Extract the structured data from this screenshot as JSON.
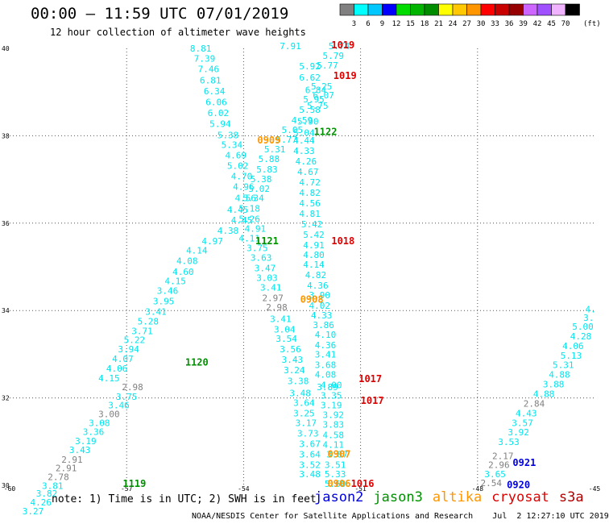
{
  "header": {
    "title": "00:00 – 11:59 UTC 07/01/2019",
    "subtitle": "12 hour collection of altimeter wave heights"
  },
  "color_scale": {
    "colors": [
      "#808080",
      "#00ffff",
      "#00c8ff",
      "#0000ff",
      "#00dc00",
      "#00b400",
      "#008c00",
      "#ffff00",
      "#ffc800",
      "#ff9600",
      "#ff0000",
      "#c80000",
      "#960000",
      "#cc66ff",
      "#a050ff",
      "#f0b4ff",
      "#000000"
    ],
    "labels": [
      "3",
      "6",
      "9",
      "12",
      "15",
      "18",
      "21",
      "24",
      "27",
      "30",
      "33",
      "36",
      "39",
      "42",
      "45",
      "70"
    ],
    "unit": "(ft)"
  },
  "map": {
    "x_ticks": [
      "-60",
      "-57",
      "-54",
      "-51",
      "-48",
      "-45"
    ],
    "y_ticks": [
      "40",
      "38",
      "36",
      "34",
      "32",
      "30"
    ],
    "xlim": [
      -60,
      -45
    ],
    "ylim": [
      30,
      40
    ]
  },
  "chart_data": {
    "type": "scatter",
    "points": [
      {
        "lon": -55.1,
        "lat": 39.93,
        "v": "8.81",
        "c": "#00e5ee"
      },
      {
        "lon": -55.0,
        "lat": 39.7,
        "v": "7.39",
        "c": "#00e5ee"
      },
      {
        "lon": -54.9,
        "lat": 39.46,
        "v": "7.46",
        "c": "#00e5ee"
      },
      {
        "lon": -54.85,
        "lat": 39.2,
        "v": "6.81",
        "c": "#00e5ee"
      },
      {
        "lon": -54.75,
        "lat": 38.95,
        "v": "6.34",
        "c": "#00e5ee"
      },
      {
        "lon": -54.7,
        "lat": 38.7,
        "v": "6.06",
        "c": "#00e5ee"
      },
      {
        "lon": -54.65,
        "lat": 38.45,
        "v": "6.02",
        "c": "#00e5ee"
      },
      {
        "lon": -54.6,
        "lat": 38.2,
        "v": "5.94",
        "c": "#00e5ee"
      },
      {
        "lon": -54.4,
        "lat": 37.94,
        "v": "5.38",
        "c": "#00e5ee"
      },
      {
        "lon": -54.3,
        "lat": 37.72,
        "v": "5.34",
        "c": "#00e5ee"
      },
      {
        "lon": -54.2,
        "lat": 37.48,
        "v": "4.69",
        "c": "#00e5ee"
      },
      {
        "lon": -54.15,
        "lat": 37.24,
        "v": "5.02",
        "c": "#00e5ee"
      },
      {
        "lon": -54.05,
        "lat": 37.0,
        "v": "4.70",
        "c": "#00e5ee"
      },
      {
        "lon": -54.0,
        "lat": 36.76,
        "v": "4.96",
        "c": "#00e5ee"
      },
      {
        "lon": -53.95,
        "lat": 36.5,
        "v": "4.56",
        "c": "#00e5ee"
      },
      {
        "lon": -54.15,
        "lat": 36.24,
        "v": "4.45",
        "c": "#00e5ee"
      },
      {
        "lon": -54.05,
        "lat": 36.0,
        "v": "4.45",
        "c": "#00e5ee"
      },
      {
        "lon": -54.4,
        "lat": 35.76,
        "v": "4.38",
        "c": "#00e5ee"
      },
      {
        "lon": -54.8,
        "lat": 35.52,
        "v": "4.97",
        "c": "#00e5ee"
      },
      {
        "lon": -55.2,
        "lat": 35.3,
        "v": "4.14",
        "c": "#00e5ee"
      },
      {
        "lon": -55.45,
        "lat": 35.06,
        "v": "4.08",
        "c": "#00e5ee"
      },
      {
        "lon": -55.55,
        "lat": 34.82,
        "v": "4.60",
        "c": "#00e5ee"
      },
      {
        "lon": -55.75,
        "lat": 34.6,
        "v": "4.15",
        "c": "#00e5ee"
      },
      {
        "lon": -55.95,
        "lat": 34.38,
        "v": "3.46",
        "c": "#00e5ee"
      },
      {
        "lon": -56.05,
        "lat": 34.14,
        "v": "3.95",
        "c": "#00e5ee"
      },
      {
        "lon": -56.25,
        "lat": 33.9,
        "v": "3.41",
        "c": "#00e5ee"
      },
      {
        "lon": -56.45,
        "lat": 33.68,
        "v": "5.28",
        "c": "#00e5ee"
      },
      {
        "lon": -56.6,
        "lat": 33.46,
        "v": "3.71",
        "c": "#00e5ee"
      },
      {
        "lon": -56.8,
        "lat": 33.26,
        "v": "5.22",
        "c": "#00e5ee"
      },
      {
        "lon": -56.95,
        "lat": 33.04,
        "v": "3.94",
        "c": "#00e5ee"
      },
      {
        "lon": -57.1,
        "lat": 32.82,
        "v": "4.07",
        "c": "#00e5ee"
      },
      {
        "lon": -57.25,
        "lat": 32.6,
        "v": "4.06",
        "c": "#00e5ee"
      },
      {
        "lon": -57.45,
        "lat": 32.38,
        "v": "4.15",
        "c": "#00e5ee"
      },
      {
        "lon": -56.85,
        "lat": 32.18,
        "v": "2.98",
        "c": "#808080"
      },
      {
        "lon": -57.0,
        "lat": 31.96,
        "v": "3.75",
        "c": "#00e5ee"
      },
      {
        "lon": -57.2,
        "lat": 31.76,
        "v": "3.46",
        "c": "#00e5ee"
      },
      {
        "lon": -57.45,
        "lat": 31.56,
        "v": "3.00",
        "c": "#808080"
      },
      {
        "lon": -57.7,
        "lat": 31.36,
        "v": "3.08",
        "c": "#00e5ee"
      },
      {
        "lon": -57.85,
        "lat": 31.15,
        "v": "3.36",
        "c": "#00e5ee"
      },
      {
        "lon": -58.05,
        "lat": 30.94,
        "v": "3.19",
        "c": "#00e5ee"
      },
      {
        "lon": -58.2,
        "lat": 30.74,
        "v": "3.43",
        "c": "#00e5ee"
      },
      {
        "lon": -58.4,
        "lat": 30.52,
        "v": "2.91",
        "c": "#808080"
      },
      {
        "lon": -58.55,
        "lat": 30.32,
        "v": "2.91",
        "c": "#808080"
      },
      {
        "lon": -58.75,
        "lat": 30.12,
        "v": "2.78",
        "c": "#808080"
      },
      {
        "lon": -58.9,
        "lat": 29.92,
        "v": "3.81",
        "c": "#00e5ee"
      },
      {
        "lon": -59.05,
        "lat": 29.74,
        "v": "3.82",
        "c": "#00e5ee"
      },
      {
        "lon": -59.2,
        "lat": 29.54,
        "v": "4.26",
        "c": "#00e5ee"
      },
      {
        "lon": -59.4,
        "lat": 29.34,
        "v": "3.27",
        "c": "#00e5ee"
      },
      {
        "lon": -52.8,
        "lat": 39.98,
        "v": "7.91",
        "c": "#00e5ee"
      },
      {
        "lon": -51.55,
        "lat": 39.98,
        "v": "5.74",
        "c": "#00e5ee"
      },
      {
        "lon": -51.7,
        "lat": 39.76,
        "v": "5.79",
        "c": "#00e5ee"
      },
      {
        "lon": -51.85,
        "lat": 39.54,
        "v": "5.77",
        "c": "#00e5ee"
      },
      {
        "lon": -52.3,
        "lat": 39.52,
        "v": "5.92",
        "c": "#00e5ee"
      },
      {
        "lon": -52.3,
        "lat": 39.26,
        "v": "6.62",
        "c": "#00e5ee"
      },
      {
        "lon": -52.0,
        "lat": 39.06,
        "v": "5.25",
        "c": "#00e5ee"
      },
      {
        "lon": -52.15,
        "lat": 38.98,
        "v": "6.84",
        "c": "#00e5ee"
      },
      {
        "lon": -51.95,
        "lat": 38.86,
        "v": "6.07",
        "c": "#00e5ee"
      },
      {
        "lon": -52.2,
        "lat": 38.76,
        "v": "5.95",
        "c": "#00e5ee"
      },
      {
        "lon": -52.1,
        "lat": 38.62,
        "v": "5.75",
        "c": "#00e5ee"
      },
      {
        "lon": -52.3,
        "lat": 38.52,
        "v": "5.58",
        "c": "#00e5ee"
      },
      {
        "lon": -52.5,
        "lat": 38.28,
        "v": "4.59",
        "c": "#00e5ee"
      },
      {
        "lon": -52.35,
        "lat": 38.26,
        "v": "5.90",
        "c": "#00e5ee"
      },
      {
        "lon": -52.75,
        "lat": 38.06,
        "v": "5.05",
        "c": "#00e5ee"
      },
      {
        "lon": -52.45,
        "lat": 38.0,
        "v": "5.04",
        "c": "#00e5ee"
      },
      {
        "lon": -52.9,
        "lat": 37.84,
        "v": "5.77",
        "c": "#00e5ee"
      },
      {
        "lon": -52.45,
        "lat": 37.82,
        "v": "4.44",
        "c": "#00e5ee"
      },
      {
        "lon": -53.2,
        "lat": 37.62,
        "v": "5.31",
        "c": "#00e5ee"
      },
      {
        "lon": -52.45,
        "lat": 37.58,
        "v": "4.33",
        "c": "#00e5ee"
      },
      {
        "lon": -53.35,
        "lat": 37.4,
        "v": "5.88",
        "c": "#00e5ee"
      },
      {
        "lon": -52.4,
        "lat": 37.34,
        "v": "4.26",
        "c": "#00e5ee"
      },
      {
        "lon": -53.4,
        "lat": 37.16,
        "v": "5.83",
        "c": "#00e5ee"
      },
      {
        "lon": -52.35,
        "lat": 37.1,
        "v": "4.67",
        "c": "#00e5ee"
      },
      {
        "lon": -53.55,
        "lat": 36.94,
        "v": "5.38",
        "c": "#00e5ee"
      },
      {
        "lon": -53.6,
        "lat": 36.72,
        "v": "5.02",
        "c": "#00e5ee"
      },
      {
        "lon": -52.3,
        "lat": 36.86,
        "v": "4.72",
        "c": "#00e5ee"
      },
      {
        "lon": -53.75,
        "lat": 36.5,
        "v": "5.34",
        "c": "#00e5ee"
      },
      {
        "lon": -52.3,
        "lat": 36.62,
        "v": "4.82",
        "c": "#00e5ee"
      },
      {
        "lon": -53.85,
        "lat": 36.26,
        "v": "5.18",
        "c": "#00e5ee"
      },
      {
        "lon": -52.3,
        "lat": 36.38,
        "v": "4.56",
        "c": "#00e5ee"
      },
      {
        "lon": -53.85,
        "lat": 36.02,
        "v": "5.26",
        "c": "#00e5ee"
      },
      {
        "lon": -52.3,
        "lat": 36.14,
        "v": "4.81",
        "c": "#00e5ee"
      },
      {
        "lon": -53.7,
        "lat": 35.8,
        "v": "4.91",
        "c": "#00e5ee"
      },
      {
        "lon": -52.25,
        "lat": 35.9,
        "v": "5.42",
        "c": "#00e5ee"
      },
      {
        "lon": -53.85,
        "lat": 35.58,
        "v": "4.11",
        "c": "#00e5ee"
      },
      {
        "lon": -52.2,
        "lat": 35.66,
        "v": "5.42",
        "c": "#00e5ee"
      },
      {
        "lon": -53.65,
        "lat": 35.36,
        "v": "3.75",
        "c": "#00e5ee"
      },
      {
        "lon": -52.2,
        "lat": 35.42,
        "v": "4.91",
        "c": "#00e5ee"
      },
      {
        "lon": -53.55,
        "lat": 35.14,
        "v": "3.63",
        "c": "#00e5ee"
      },
      {
        "lon": -52.2,
        "lat": 35.2,
        "v": "4.80",
        "c": "#00e5ee"
      },
      {
        "lon": -53.45,
        "lat": 34.9,
        "v": "3.47",
        "c": "#00e5ee"
      },
      {
        "lon": -52.2,
        "lat": 34.98,
        "v": "4.14",
        "c": "#00e5ee"
      },
      {
        "lon": -53.4,
        "lat": 34.68,
        "v": "3.03",
        "c": "#00e5ee"
      },
      {
        "lon": -52.15,
        "lat": 34.74,
        "v": "4.82",
        "c": "#00e5ee"
      },
      {
        "lon": -53.3,
        "lat": 34.46,
        "v": "3.41",
        "c": "#00e5ee"
      },
      {
        "lon": -52.1,
        "lat": 34.5,
        "v": "4.36",
        "c": "#00e5ee"
      },
      {
        "lon": -53.25,
        "lat": 34.22,
        "v": "2.97",
        "c": "#808080"
      },
      {
        "lon": -52.05,
        "lat": 34.28,
        "v": "3.90",
        "c": "#00e5ee"
      },
      {
        "lon": -53.15,
        "lat": 34.0,
        "v": "2.98",
        "c": "#808080"
      },
      {
        "lon": -52.05,
        "lat": 34.04,
        "v": "4.02",
        "c": "#00e5ee"
      },
      {
        "lon": -52.0,
        "lat": 33.82,
        "v": "4.33",
        "c": "#00e5ee"
      },
      {
        "lon": -53.05,
        "lat": 33.74,
        "v": "3.41",
        "c": "#00e5ee"
      },
      {
        "lon": -51.95,
        "lat": 33.6,
        "v": "3.86",
        "c": "#00e5ee"
      },
      {
        "lon": -52.95,
        "lat": 33.5,
        "v": "3.04",
        "c": "#00e5ee"
      },
      {
        "lon": -51.9,
        "lat": 33.38,
        "v": "4.10",
        "c": "#00e5ee"
      },
      {
        "lon": -52.9,
        "lat": 33.28,
        "v": "3.54",
        "c": "#00e5ee"
      },
      {
        "lon": -51.9,
        "lat": 33.14,
        "v": "4.36",
        "c": "#00e5ee"
      },
      {
        "lon": -52.8,
        "lat": 33.04,
        "v": "3.56",
        "c": "#00e5ee"
      },
      {
        "lon": -51.9,
        "lat": 32.92,
        "v": "3.41",
        "c": "#00e5ee"
      },
      {
        "lon": -52.75,
        "lat": 32.8,
        "v": "3.43",
        "c": "#00e5ee"
      },
      {
        "lon": -51.9,
        "lat": 32.68,
        "v": "3.68",
        "c": "#00e5ee"
      },
      {
        "lon": -52.7,
        "lat": 32.56,
        "v": "3.24",
        "c": "#00e5ee"
      },
      {
        "lon": -51.9,
        "lat": 32.46,
        "v": "4.08",
        "c": "#00e5ee"
      },
      {
        "lon": -51.75,
        "lat": 32.22,
        "v": "4.00",
        "c": "#00e5ee"
      },
      {
        "lon": -51.85,
        "lat": 32.18,
        "v": "3.89",
        "c": "#00e5ee"
      },
      {
        "lon": -52.6,
        "lat": 32.32,
        "v": "3.38",
        "c": "#00e5ee"
      },
      {
        "lon": -51.75,
        "lat": 31.98,
        "v": "3.35",
        "c": "#00e5ee"
      },
      {
        "lon": -52.55,
        "lat": 32.04,
        "v": "3.48",
        "c": "#00e5ee"
      },
      {
        "lon": -51.75,
        "lat": 31.76,
        "v": "3.19",
        "c": "#00e5ee"
      },
      {
        "lon": -52.45,
        "lat": 31.82,
        "v": "3.64",
        "c": "#00e5ee"
      },
      {
        "lon": -51.7,
        "lat": 31.54,
        "v": "3.92",
        "c": "#00e5ee"
      },
      {
        "lon": -52.45,
        "lat": 31.58,
        "v": "3.25",
        "c": "#00e5ee"
      },
      {
        "lon": -51.7,
        "lat": 31.32,
        "v": "3.83",
        "c": "#00e5ee"
      },
      {
        "lon": -52.4,
        "lat": 31.36,
        "v": "3.17",
        "c": "#00e5ee"
      },
      {
        "lon": -51.7,
        "lat": 31.08,
        "v": "4.58",
        "c": "#00e5ee"
      },
      {
        "lon": -52.35,
        "lat": 31.12,
        "v": "3.73",
        "c": "#00e5ee"
      },
      {
        "lon": -51.7,
        "lat": 30.86,
        "v": "4.11",
        "c": "#00e5ee"
      },
      {
        "lon": -52.3,
        "lat": 30.88,
        "v": "3.67",
        "c": "#00e5ee"
      },
      {
        "lon": -51.6,
        "lat": 30.64,
        "v": "3.87",
        "c": "#00e5ee"
      },
      {
        "lon": -51.65,
        "lat": 30.4,
        "v": "3.51",
        "c": "#00e5ee"
      },
      {
        "lon": -52.3,
        "lat": 30.64,
        "v": "3.64",
        "c": "#00e5ee"
      },
      {
        "lon": -51.65,
        "lat": 30.18,
        "v": "5.33",
        "c": "#00e5ee"
      },
      {
        "lon": -52.3,
        "lat": 30.4,
        "v": "3.52",
        "c": "#00e5ee"
      },
      {
        "lon": -51.65,
        "lat": 29.96,
        "v": "5.60",
        "c": "#00e5ee"
      },
      {
        "lon": -52.3,
        "lat": 30.18,
        "v": "3.48",
        "c": "#00e5ee"
      },
      {
        "lon": -45.1,
        "lat": 33.96,
        "v": "4.",
        "c": "#00e5ee"
      },
      {
        "lon": -45.15,
        "lat": 33.76,
        "v": "3.",
        "c": "#00e5ee"
      },
      {
        "lon": -45.3,
        "lat": 33.56,
        "v": "5.00",
        "c": "#00e5ee"
      },
      {
        "lon": -45.35,
        "lat": 33.34,
        "v": "4.28",
        "c": "#00e5ee"
      },
      {
        "lon": -45.55,
        "lat": 33.12,
        "v": "4.06",
        "c": "#00e5ee"
      },
      {
        "lon": -45.6,
        "lat": 32.9,
        "v": "5.13",
        "c": "#00e5ee"
      },
      {
        "lon": -45.8,
        "lat": 32.68,
        "v": "5.31",
        "c": "#00e5ee"
      },
      {
        "lon": -45.9,
        "lat": 32.46,
        "v": "4.88",
        "c": "#00e5ee"
      },
      {
        "lon": -46.05,
        "lat": 32.24,
        "v": "3.88",
        "c": "#00e5ee"
      },
      {
        "lon": -46.3,
        "lat": 32.02,
        "v": "4.88",
        "c": "#00e5ee"
      },
      {
        "lon": -46.55,
        "lat": 31.8,
        "v": "2.84",
        "c": "#808080"
      },
      {
        "lon": -46.75,
        "lat": 31.58,
        "v": "4.43",
        "c": "#00e5ee"
      },
      {
        "lon": -46.85,
        "lat": 31.36,
        "v": "3.57",
        "c": "#00e5ee"
      },
      {
        "lon": -46.95,
        "lat": 31.14,
        "v": "3.92",
        "c": "#00e5ee"
      },
      {
        "lon": -47.2,
        "lat": 30.92,
        "v": "3.53",
        "c": "#00e5ee"
      },
      {
        "lon": -47.35,
        "lat": 30.6,
        "v": "2.17",
        "c": "#808080"
      },
      {
        "lon": -47.45,
        "lat": 30.4,
        "v": "2.96",
        "c": "#808080"
      },
      {
        "lon": -47.55,
        "lat": 30.18,
        "v": "3.65",
        "c": "#00e5ee"
      },
      {
        "lon": -47.65,
        "lat": 29.98,
        "v": "2.54",
        "c": "#808080"
      }
    ],
    "times": [
      {
        "lon": -51.45,
        "lat": 40.0,
        "t": "1019",
        "c": "#e00000"
      },
      {
        "lon": -51.4,
        "lat": 39.3,
        "t": "1019",
        "c": "#e00000"
      },
      {
        "lon": -51.9,
        "lat": 38.02,
        "t": "1122",
        "c": "#009000"
      },
      {
        "lon": -53.35,
        "lat": 37.82,
        "t": "0909",
        "c": "#ff9600"
      },
      {
        "lon": -53.4,
        "lat": 35.52,
        "t": "1121",
        "c": "#009000"
      },
      {
        "lon": -51.45,
        "lat": 35.52,
        "t": "1018",
        "c": "#e00000"
      },
      {
        "lon": -52.25,
        "lat": 34.18,
        "t": "0908",
        "c": "#ff9600"
      },
      {
        "lon": -55.2,
        "lat": 32.74,
        "t": "1120",
        "c": "#009000"
      },
      {
        "lon": -50.75,
        "lat": 32.36,
        "t": "1017",
        "c": "#e00000"
      },
      {
        "lon": -50.7,
        "lat": 31.86,
        "t": "1017",
        "c": "#e00000"
      },
      {
        "lon": -51.55,
        "lat": 30.64,
        "t": "0907",
        "c": "#ff9600"
      },
      {
        "lon": -51.55,
        "lat": 29.96,
        "t": "0906",
        "c": "#ff9600"
      },
      {
        "lon": -50.95,
        "lat": 29.96,
        "t": "1016",
        "c": "#e00000"
      },
      {
        "lon": -56.8,
        "lat": 29.96,
        "t": "1119",
        "c": "#009000"
      },
      {
        "lon": -46.8,
        "lat": 30.44,
        "t": "0921",
        "c": "#0000e0"
      },
      {
        "lon": -46.95,
        "lat": 29.94,
        "t": "0920",
        "c": "#0000e0"
      }
    ]
  },
  "note": "note: 1) Time is in UTC; 2) SWH is in feet",
  "legend": [
    {
      "label": "jason2",
      "color": "#0000dd"
    },
    {
      "label": "jason3",
      "color": "#009000"
    },
    {
      "label": "altika",
      "color": "#ff9600"
    },
    {
      "label": "cryosat",
      "color": "#e00000"
    },
    {
      "label": "s3a",
      "color": "#b00000"
    }
  ],
  "footer": "NOAA/NESDIS Center for Satellite Applications and Research    Jul  2 12:27:10 UTC 2019"
}
